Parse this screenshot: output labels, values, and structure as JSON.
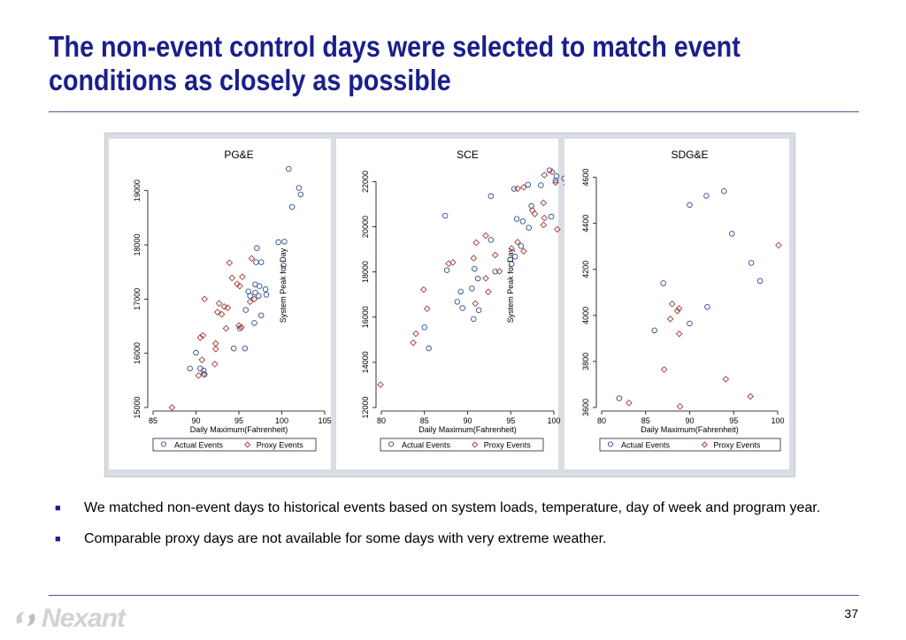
{
  "slide": {
    "title_line1": "The non-event control days were selected to match event",
    "title_line2": "conditions as closely as possible",
    "bullets": [
      "We matched non-event days to historical events based on system loads, temperature, day of week and program year.",
      "Comparable proxy days are not available for some days with very extreme weather."
    ],
    "bullet_marker": "■",
    "page_number": "37",
    "logo_text": "Nexant",
    "logo_icon": "nexant-swirl-icon"
  },
  "colors": {
    "title": "#1a1f8c",
    "actual": "#2f4f8f",
    "proxy": "#a23a3a",
    "panel": "#d9dde4",
    "rule": "#4a5a9a"
  },
  "chart_data": [
    {
      "type": "scatter",
      "title": "PG&E",
      "xlabel": "Daily Maximum(Fahrenheit)",
      "ylabel": "System Peak for Day",
      "xlim": [
        85,
        105
      ],
      "ylim": [
        15000,
        19500
      ],
      "xticks": [
        85,
        90,
        95,
        100,
        105
      ],
      "yticks": [
        15000,
        16000,
        17000,
        18000,
        19000
      ],
      "legend": [
        "Actual Events",
        "Proxy Events"
      ],
      "series": [
        {
          "name": "Actual Events",
          "marker": "circle",
          "points": [
            [
              100.8,
              19400
            ],
            [
              102,
              19050
            ],
            [
              102.2,
              18930
            ],
            [
              101.2,
              18700
            ],
            [
              99.6,
              18050
            ],
            [
              100.3,
              18060
            ],
            [
              97.1,
              17940
            ],
            [
              97,
              17680
            ],
            [
              97.6,
              17680
            ],
            [
              100.2,
              17620
            ],
            [
              96.9,
              17270
            ],
            [
              97.4,
              17240
            ],
            [
              98.1,
              17180
            ],
            [
              96.1,
              17140
            ],
            [
              96.9,
              17120
            ],
            [
              96.3,
              17060
            ],
            [
              97.3,
              17060
            ],
            [
              98.2,
              17080
            ],
            [
              95.8,
              16800
            ],
            [
              97.6,
              16700
            ],
            [
              96.8,
              16560
            ],
            [
              95.1,
              16460
            ],
            [
              94.4,
              16090
            ],
            [
              95.7,
              16090
            ],
            [
              90,
              16010
            ],
            [
              89.3,
              15720
            ],
            [
              90.5,
              15720
            ],
            [
              90.9,
              15680
            ],
            [
              91,
              15610
            ]
          ]
        },
        {
          "name": "Proxy Events",
          "marker": "diamond",
          "points": [
            [
              87.2,
              15000
            ],
            [
              90.3,
              15590
            ],
            [
              90.9,
              15620
            ],
            [
              90.7,
              15880
            ],
            [
              92.2,
              15800
            ],
            [
              92.3,
              16180
            ],
            [
              92.3,
              16080
            ],
            [
              90.5,
              16290
            ],
            [
              90.8,
              16330
            ],
            [
              93.5,
              16460
            ],
            [
              95,
              16510
            ],
            [
              95.3,
              16480
            ],
            [
              92.5,
              16760
            ],
            [
              93,
              16720
            ],
            [
              93.3,
              16860
            ],
            [
              93.7,
              16840
            ],
            [
              92.7,
              16920
            ],
            [
              91,
              17000
            ],
            [
              96.3,
              16950
            ],
            [
              96.8,
              17000
            ],
            [
              95.1,
              17240
            ],
            [
              94.8,
              17280
            ],
            [
              94.2,
              17390
            ],
            [
              95.4,
              17410
            ],
            [
              93.9,
              17670
            ],
            [
              96.5,
              17750
            ]
          ]
        }
      ]
    },
    {
      "type": "scatter",
      "title": "SCE",
      "xlabel": "Daily Maximum(Fahrenheit)",
      "ylabel": "System Peak for Day",
      "xlim": [
        80,
        100
      ],
      "ylim": [
        12000,
        22800
      ],
      "xticks": [
        80,
        85,
        90,
        95,
        100
      ],
      "yticks": [
        12000,
        14000,
        16000,
        18000,
        20000,
        22000
      ],
      "legend": [
        "Actual Events",
        "Proxy Events"
      ],
      "series": [
        {
          "name": "Actual Events",
          "marker": "circle",
          "points": [
            [
              99.5,
              22500
            ],
            [
              100.3,
              22240
            ],
            [
              101.2,
              22140
            ],
            [
              100.2,
              22050
            ],
            [
              98.5,
              21840
            ],
            [
              97,
              21860
            ],
            [
              95.4,
              21680
            ],
            [
              92.7,
              21360
            ],
            [
              97.4,
              20920
            ],
            [
              99.7,
              20450
            ],
            [
              87.4,
              20490
            ],
            [
              96.4,
              20240
            ],
            [
              95.7,
              20350
            ],
            [
              97.1,
              19960
            ],
            [
              92.7,
              19420
            ],
            [
              96.2,
              19150
            ],
            [
              95.5,
              18680
            ],
            [
              95.1,
              18350
            ],
            [
              93.2,
              18020
            ],
            [
              90.8,
              18140
            ],
            [
              87.6,
              18080
            ],
            [
              91.2,
              17710
            ],
            [
              90.5,
              17270
            ],
            [
              89.2,
              17130
            ],
            [
              88.8,
              16680
            ],
            [
              89.4,
              16400
            ],
            [
              91.3,
              16310
            ],
            [
              90.7,
              15920
            ],
            [
              85,
              15550
            ],
            [
              85.5,
              14620
            ]
          ]
        },
        {
          "name": "Proxy Events",
          "marker": "diamond",
          "points": [
            [
              99.8,
              22430
            ],
            [
              98.9,
              22290
            ],
            [
              100.2,
              21960
            ],
            [
              101.5,
              21860
            ],
            [
              96.5,
              21750
            ],
            [
              95.8,
              21690
            ],
            [
              98.8,
              21060
            ],
            [
              97.5,
              20730
            ],
            [
              97.8,
              20570
            ],
            [
              100.4,
              19890
            ],
            [
              98.9,
              20390
            ],
            [
              98.8,
              20080
            ],
            [
              92.1,
              19610
            ],
            [
              91,
              19300
            ],
            [
              95.8,
              19320
            ],
            [
              95.1,
              19040
            ],
            [
              96.5,
              18920
            ],
            [
              93.2,
              18750
            ],
            [
              90.7,
              18610
            ],
            [
              88.3,
              18420
            ],
            [
              87.8,
              18370
            ],
            [
              93.7,
              18030
            ],
            [
              92.1,
              17720
            ],
            [
              92.4,
              17120
            ],
            [
              84.9,
              17220
            ],
            [
              90.9,
              16600
            ],
            [
              85.3,
              16370
            ],
            [
              84,
              15270
            ],
            [
              83.7,
              14870
            ],
            [
              79.9,
              13010
            ]
          ]
        }
      ]
    },
    {
      "type": "scatter",
      "title": "SDG&E",
      "xlabel": "Daily Maximum(Fahrenheit)",
      "ylabel": "",
      "xlim": [
        80,
        100
      ],
      "ylim": [
        3600,
        4660
      ],
      "xticks": [
        80,
        85,
        90,
        95,
        100
      ],
      "yticks": [
        3600,
        3800,
        4000,
        4200,
        4400,
        4600
      ],
      "legend": [
        "Actual Events",
        "Proxy Events"
      ],
      "series": [
        {
          "name": "Actual Events",
          "marker": "circle",
          "points": [
            [
              93.9,
              4540
            ],
            [
              91.9,
              4520
            ],
            [
              90,
              4480
            ],
            [
              94.8,
              4355
            ],
            [
              97,
              4228
            ],
            [
              98,
              4150
            ],
            [
              87,
              4140
            ],
            [
              92,
              4037
            ],
            [
              90,
              3965
            ],
            [
              86,
              3935
            ],
            [
              82,
              3640
            ]
          ]
        },
        {
          "name": "Proxy Events",
          "marker": "diamond",
          "points": [
            [
              100.1,
              4305
            ],
            [
              88,
              4050
            ],
            [
              88.8,
              4030
            ],
            [
              88.6,
              4020
            ],
            [
              87.8,
              3985
            ],
            [
              88.8,
              3920
            ],
            [
              87.1,
              3765
            ],
            [
              94.1,
              3723
            ],
            [
              96.9,
              3648
            ],
            [
              83.1,
              3620
            ],
            [
              88.9,
              3605
            ]
          ]
        }
      ]
    }
  ]
}
